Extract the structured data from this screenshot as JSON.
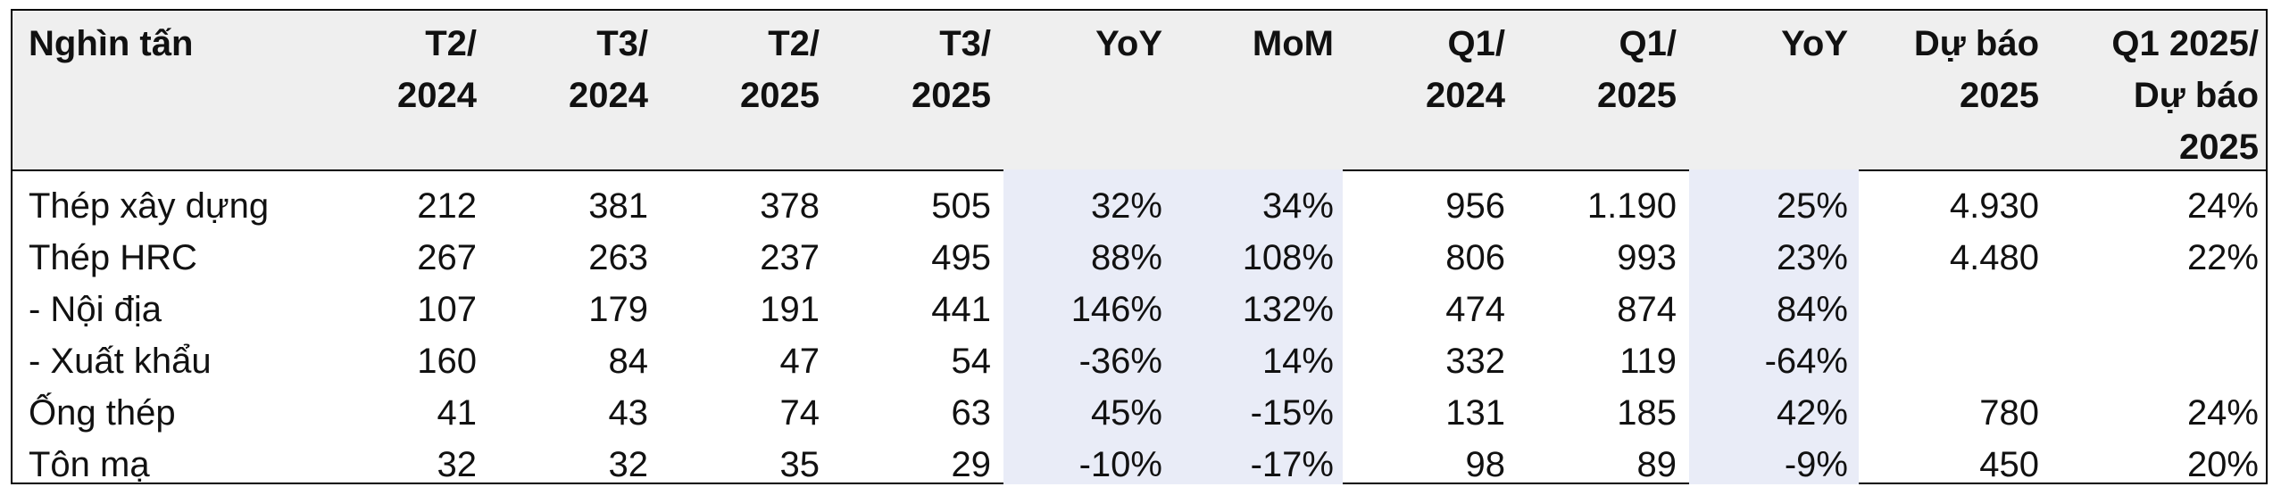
{
  "table": {
    "columns": [
      {
        "lines": [
          "Nghìn tấn"
        ]
      },
      {
        "lines": [
          "T2/",
          "2024"
        ]
      },
      {
        "lines": [
          "T3/",
          "2024"
        ]
      },
      {
        "lines": [
          "T2/",
          "2025"
        ]
      },
      {
        "lines": [
          "T3/",
          "2025"
        ]
      },
      {
        "lines": [
          "YoY"
        ]
      },
      {
        "lines": [
          "MoM"
        ]
      },
      {
        "lines": [
          "Q1/",
          "2024"
        ]
      },
      {
        "lines": [
          "Q1/",
          "2025"
        ]
      },
      {
        "lines": [
          "YoY"
        ]
      },
      {
        "lines": [
          "Dự báo",
          "2025"
        ]
      },
      {
        "lines": [
          "Q1 2025/",
          "Dự báo",
          "2025"
        ]
      }
    ],
    "rows": [
      {
        "cells": [
          "Thép xây dựng",
          "212",
          "381",
          "378",
          "505",
          "32%",
          "34%",
          "956",
          "1.190",
          "25%",
          "4.930",
          "24%"
        ]
      },
      {
        "cells": [
          "Thép HRC",
          "267",
          "263",
          "237",
          "495",
          "88%",
          "108%",
          "806",
          "993",
          "23%",
          "4.480",
          "22%"
        ]
      },
      {
        "cells": [
          "- Nội địa",
          "107",
          "179",
          "191",
          "441",
          "146%",
          "132%",
          "474",
          "874",
          "84%",
          "",
          ""
        ]
      },
      {
        "cells": [
          "- Xuất khẩu",
          "160",
          "84",
          "47",
          "54",
          "-36%",
          "14%",
          "332",
          "119",
          "-64%",
          "",
          ""
        ]
      },
      {
        "cells": [
          "Ống thép",
          "41",
          "43",
          "74",
          "63",
          "45%",
          "-15%",
          "131",
          "185",
          "42%",
          "780",
          "24%"
        ]
      },
      {
        "cells": [
          "Tôn mạ",
          "32",
          "32",
          "35",
          "29",
          "-10%",
          "-17%",
          "98",
          "89",
          "-9%",
          "450",
          "20%"
        ]
      }
    ]
  }
}
